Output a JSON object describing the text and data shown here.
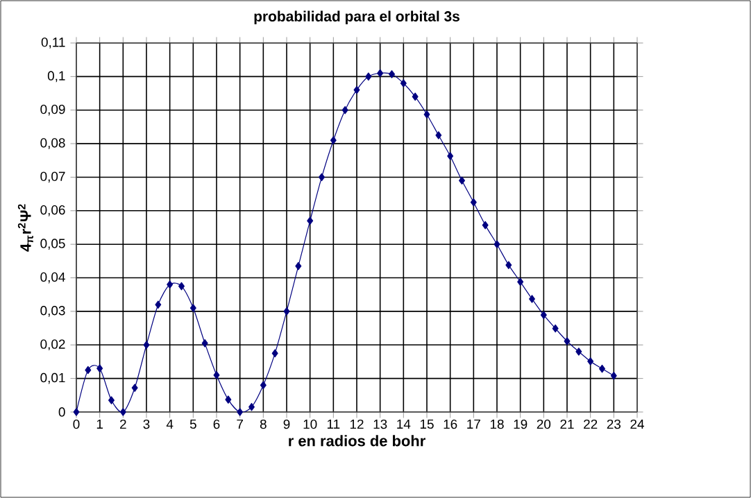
{
  "chart_data": {
    "type": "line",
    "title": "probabilidad para el orbital 3s",
    "xlabel": "r en radios de bohr",
    "ylabel": "4$_{π}$r$^{2}$Ψ$^{2}$",
    "x": [
      0,
      0.5,
      1,
      1.5,
      2,
      2.5,
      3,
      3.5,
      4,
      4.5,
      5,
      5.5,
      6,
      6.5,
      7,
      7.5,
      8,
      8.5,
      9,
      9.5,
      10,
      10.5,
      11,
      11.5,
      12,
      12.5,
      13,
      13.5,
      14,
      14.5,
      15,
      15.5,
      16,
      16.5,
      17,
      17.5,
      18,
      18.5,
      19,
      19.5,
      20,
      20.5,
      21,
      21.5,
      22,
      22.5,
      23
    ],
    "series": [
      {
        "color": "#000080",
        "values": [
          0,
          0.0125,
          0.013,
          0.0035,
          0,
          0.0072,
          0.02,
          0.032,
          0.038,
          0.0375,
          0.031,
          0.0205,
          0.011,
          0.0037,
          0,
          0.0015,
          0.008,
          0.0175,
          0.03,
          0.0435,
          0.057,
          0.07,
          0.081,
          0.09,
          0.096,
          0.1,
          0.101,
          0.1007,
          0.098,
          0.094,
          0.0887,
          0.0825,
          0.0763,
          0.069,
          0.0625,
          0.0557,
          0.05,
          0.0438,
          0.0388,
          0.0337,
          0.0289,
          0.0249,
          0.0211,
          0.018,
          0.0151,
          0.0129,
          0.0108
        ]
      }
    ],
    "xlim": [
      0,
      24
    ],
    "xticks": [
      0,
      1,
      2,
      3,
      4,
      5,
      6,
      7,
      8,
      9,
      10,
      11,
      12,
      13,
      14,
      15,
      16,
      17,
      18,
      19,
      20,
      21,
      22,
      23,
      24
    ],
    "ylim": [
      0,
      0.11
    ],
    "yticks": [
      {
        "value": 0,
        "label": "0"
      },
      {
        "value": 0.01,
        "label": "0,01"
      },
      {
        "value": 0.02,
        "label": "0,02"
      },
      {
        "value": 0.03,
        "label": "0,03"
      },
      {
        "value": 0.04,
        "label": "0,04"
      },
      {
        "value": 0.05,
        "label": "0,05"
      },
      {
        "value": 0.06,
        "label": "0,06"
      },
      {
        "value": 0.07,
        "label": "0,07"
      },
      {
        "value": 0.08,
        "label": "0,08"
      },
      {
        "value": 0.09,
        "label": "0,09"
      },
      {
        "value": 0.1,
        "label": "0,1"
      },
      {
        "value": 0.11,
        "label": "0,11"
      }
    ],
    "grid": true,
    "marker": "diamond",
    "line_style": "solid"
  }
}
